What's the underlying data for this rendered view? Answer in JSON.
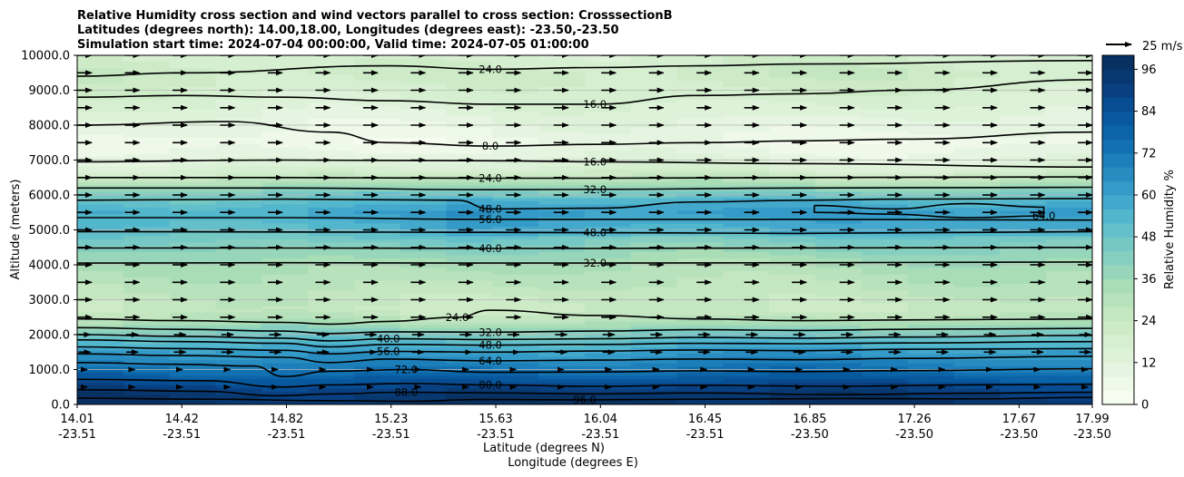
{
  "chart_data": {
    "type": "heatmap",
    "title_lines": [
      "Relative Humidity cross section and wind vectors parallel to cross section: CrosssectionB",
      "Latitudes (degrees north): 14.00,18.00, Longitudes (degrees east): -23.50,-23.50",
      "Simulation start time: 2024-07-04 00:00:00, Valid time: 2024-07-05 01:00:00"
    ],
    "ylabel": "Altitude (meters)",
    "xlabel_lines": [
      "Latitude (degrees N)",
      "Longitude (degrees E)"
    ],
    "ylim": [
      0,
      10000
    ],
    "y_ticks": [
      "0.0",
      "1000.0",
      "2000.0",
      "3000.0",
      "4000.0",
      "5000.0",
      "6000.0",
      "7000.0",
      "8000.0",
      "9000.0",
      "10000.0"
    ],
    "x_ticks": [
      {
        "lat": "14.01",
        "lon": "-23.51"
      },
      {
        "lat": "14.42",
        "lon": "-23.51"
      },
      {
        "lat": "14.82",
        "lon": "-23.51"
      },
      {
        "lat": "15.23",
        "lon": "-23.51"
      },
      {
        "lat": "15.63",
        "lon": "-23.51"
      },
      {
        "lat": "16.04",
        "lon": "-23.51"
      },
      {
        "lat": "16.45",
        "lon": "-23.51"
      },
      {
        "lat": "16.85",
        "lon": "-23.50"
      },
      {
        "lat": "17.26",
        "lon": "-23.50"
      },
      {
        "lat": "17.67",
        "lon": "-23.50"
      },
      {
        "lat": "17.99",
        "lon": "-23.50"
      }
    ],
    "colorbar": {
      "label": "Relative Humidity %",
      "min": 0,
      "max": 100,
      "ticks": [
        "0",
        "12",
        "24",
        "36",
        "48",
        "60",
        "72",
        "84",
        "96"
      ],
      "levels": [
        0,
        4,
        8,
        12,
        16,
        20,
        24,
        28,
        32,
        36,
        40,
        44,
        48,
        52,
        56,
        60,
        64,
        68,
        72,
        76,
        80,
        84,
        88,
        92,
        96,
        100
      ],
      "colors": [
        "#f7fcf0",
        "#eff9e9",
        "#e6f5e1",
        "#def2d9",
        "#d6efd0",
        "#cdebc7",
        "#c4e7c1",
        "#b7e2bb",
        "#a9ddb6",
        "#98d6bb",
        "#86cfc0",
        "#75c8c4",
        "#63bfc9",
        "#52b6cc",
        "#43a8cc",
        "#349ac7",
        "#288cc0",
        "#1d7fba",
        "#1371b1",
        "#0b64a8",
        "#08589e",
        "#084c92",
        "#084081",
        "#083870",
        "#083060"
      ]
    },
    "wind_reference": {
      "label": "25 m/s",
      "speed": 25
    },
    "field_profile": [
      {
        "alt": 0,
        "rh": 97
      },
      {
        "alt": 300,
        "rh": 94
      },
      {
        "alt": 600,
        "rh": 86
      },
      {
        "alt": 900,
        "rh": 76
      },
      {
        "alt": 1200,
        "rh": 68
      },
      {
        "alt": 1500,
        "rh": 61
      },
      {
        "alt": 1800,
        "rh": 52
      },
      {
        "alt": 2100,
        "rh": 42
      },
      {
        "alt": 2400,
        "rh": 30
      },
      {
        "alt": 2700,
        "rh": 24
      },
      {
        "alt": 3000,
        "rh": 25
      },
      {
        "alt": 3500,
        "rh": 29
      },
      {
        "alt": 4000,
        "rh": 33
      },
      {
        "alt": 4500,
        "rh": 41
      },
      {
        "alt": 5000,
        "rh": 52
      },
      {
        "alt": 5500,
        "rh": 57
      },
      {
        "alt": 6000,
        "rh": 47
      },
      {
        "alt": 6300,
        "rh": 34
      },
      {
        "alt": 6700,
        "rh": 18
      },
      {
        "alt": 7000,
        "rh": 12
      },
      {
        "alt": 7500,
        "rh": 6
      },
      {
        "alt": 8000,
        "rh": 10
      },
      {
        "alt": 8500,
        "rh": 15
      },
      {
        "alt": 9000,
        "rh": 19
      },
      {
        "alt": 9500,
        "rh": 22
      },
      {
        "alt": 10000,
        "rh": 18
      }
    ],
    "contours": [
      {
        "level": "96.0",
        "points": [
          [
            14.01,
            180
          ],
          [
            14.5,
            150
          ],
          [
            15.0,
            110
          ],
          [
            15.3,
            90
          ],
          [
            15.6,
            140
          ],
          [
            16.0,
            130
          ],
          [
            16.5,
            150
          ],
          [
            17.0,
            170
          ],
          [
            17.5,
            160
          ],
          [
            17.99,
            200
          ]
        ]
      },
      {
        "level": "88.0",
        "points": [
          [
            14.01,
            420
          ],
          [
            14.5,
            380
          ],
          [
            14.8,
            250
          ],
          [
            15.0,
            300
          ],
          [
            15.3,
            350
          ],
          [
            15.63,
            330
          ],
          [
            16.04,
            300
          ],
          [
            16.45,
            330
          ],
          [
            17.0,
            280
          ],
          [
            17.5,
            320
          ],
          [
            17.99,
            350
          ]
        ]
      },
      {
        "level": "80.0",
        "points": [
          [
            14.01,
            720
          ],
          [
            14.5,
            680
          ],
          [
            14.82,
            500
          ],
          [
            15.0,
            560
          ],
          [
            15.3,
            600
          ],
          [
            15.63,
            560
          ],
          [
            16.04,
            520
          ],
          [
            16.45,
            550
          ],
          [
            17.0,
            520
          ],
          [
            17.5,
            560
          ],
          [
            17.99,
            580
          ]
        ]
      },
      {
        "level": "72.0",
        "points": [
          [
            14.01,
            1200
          ],
          [
            14.4,
            1150
          ],
          [
            14.7,
            1100
          ],
          [
            14.82,
            800
          ],
          [
            15.0,
            950
          ],
          [
            15.3,
            1000
          ],
          [
            15.63,
            920
          ],
          [
            16.04,
            930
          ],
          [
            16.45,
            960
          ],
          [
            16.85,
            940
          ],
          [
            17.26,
            970
          ],
          [
            17.99,
            1020
          ]
        ]
      },
      {
        "level": "64.0",
        "points": [
          [
            14.01,
            1450
          ],
          [
            14.42,
            1400
          ],
          [
            14.82,
            1350
          ],
          [
            15.0,
            1200
          ],
          [
            15.23,
            1300
          ],
          [
            15.63,
            1250
          ],
          [
            16.04,
            1270
          ],
          [
            16.45,
            1300
          ],
          [
            16.85,
            1280
          ],
          [
            17.26,
            1320
          ],
          [
            17.99,
            1380
          ]
        ]
      },
      {
        "level": "56.0",
        "points": [
          [
            14.01,
            1650
          ],
          [
            14.42,
            1600
          ],
          [
            14.82,
            1550
          ],
          [
            15.0,
            1450
          ],
          [
            15.23,
            1520
          ],
          [
            15.63,
            1500
          ],
          [
            16.04,
            1530
          ],
          [
            16.45,
            1560
          ],
          [
            16.85,
            1540
          ],
          [
            17.26,
            1580
          ],
          [
            17.99,
            1600
          ]
        ]
      },
      {
        "level": "48.0",
        "points": [
          [
            14.01,
            1850
          ],
          [
            14.42,
            1800
          ],
          [
            14.82,
            1750
          ],
          [
            15.0,
            1650
          ],
          [
            15.23,
            1720
          ],
          [
            15.63,
            1700
          ],
          [
            16.04,
            1720
          ],
          [
            16.45,
            1750
          ],
          [
            16.85,
            1740
          ],
          [
            17.26,
            1760
          ],
          [
            17.99,
            1800
          ]
        ]
      },
      {
        "level": "40.0",
        "points": [
          [
            14.01,
            2000
          ],
          [
            14.42,
            1950
          ],
          [
            14.82,
            1900
          ],
          [
            15.0,
            1820
          ],
          [
            15.23,
            1880
          ],
          [
            15.63,
            1860
          ],
          [
            16.04,
            1880
          ],
          [
            16.45,
            1920
          ],
          [
            16.85,
            1900
          ],
          [
            17.26,
            1930
          ],
          [
            17.99,
            1980
          ]
        ]
      },
      {
        "level": "32.0",
        "points": [
          [
            14.01,
            2200
          ],
          [
            14.42,
            2150
          ],
          [
            14.82,
            2100
          ],
          [
            15.0,
            2030
          ],
          [
            15.23,
            2080
          ],
          [
            15.63,
            2070
          ],
          [
            16.04,
            2100
          ],
          [
            16.45,
            2140
          ],
          [
            16.85,
            2120
          ],
          [
            17.26,
            2150
          ],
          [
            17.99,
            2180
          ]
        ]
      },
      {
        "level": "24.0",
        "points": [
          [
            14.01,
            2450
          ],
          [
            14.42,
            2400
          ],
          [
            14.82,
            2350
          ],
          [
            15.0,
            2300
          ],
          [
            15.23,
            2380
          ],
          [
            15.5,
            2500
          ],
          [
            15.63,
            2700
          ],
          [
            16.04,
            2550
          ],
          [
            16.45,
            2450
          ],
          [
            16.85,
            2400
          ],
          [
            17.26,
            2420
          ],
          [
            17.99,
            2450
          ]
        ]
      },
      {
        "level": "32.0",
        "points": [
          [
            14.01,
            4050
          ],
          [
            14.82,
            4060
          ],
          [
            15.63,
            4050
          ],
          [
            16.04,
            4050
          ],
          [
            16.85,
            4060
          ],
          [
            17.99,
            4080
          ]
        ]
      },
      {
        "level": "40.0",
        "points": [
          [
            14.01,
            4480
          ],
          [
            14.82,
            4480
          ],
          [
            15.63,
            4470
          ],
          [
            16.04,
            4470
          ],
          [
            16.85,
            4480
          ],
          [
            17.99,
            4500
          ]
        ]
      },
      {
        "level": "48.0",
        "points": [
          [
            14.01,
            4950
          ],
          [
            14.82,
            4940
          ],
          [
            15.63,
            4930
          ],
          [
            16.04,
            4920
          ],
          [
            16.85,
            4900
          ],
          [
            17.99,
            4950
          ]
        ]
      },
      {
        "level": "56.0",
        "points": [
          [
            14.01,
            5350
          ],
          [
            14.82,
            5350
          ],
          [
            15.63,
            5300
          ],
          [
            16.04,
            5300
          ],
          [
            16.85,
            5300
          ],
          [
            17.99,
            5280
          ]
        ]
      },
      {
        "level": "64.0",
        "points": [
          [
            16.9,
            5700
          ],
          [
            17.2,
            5600
          ],
          [
            17.5,
            5750
          ],
          [
            17.8,
            5650
          ],
          [
            17.8,
            5400
          ],
          [
            17.5,
            5350
          ],
          [
            17.2,
            5450
          ],
          [
            16.9,
            5500
          ],
          [
            16.9,
            5700
          ]
        ]
      },
      {
        "level": "48.0",
        "points": [
          [
            14.01,
            5850
          ],
          [
            14.82,
            5880
          ],
          [
            15.5,
            5850
          ],
          [
            15.63,
            5600
          ],
          [
            16.04,
            5620
          ],
          [
            16.45,
            5800
          ],
          [
            16.85,
            5850
          ],
          [
            17.26,
            5880
          ],
          [
            17.99,
            5900
          ]
        ]
      },
      {
        "level": "32.0",
        "points": [
          [
            14.01,
            6200
          ],
          [
            14.82,
            6200
          ],
          [
            15.63,
            6150
          ],
          [
            16.04,
            6160
          ],
          [
            16.85,
            6200
          ],
          [
            17.99,
            6220
          ]
        ]
      },
      {
        "level": "24.0",
        "points": [
          [
            14.01,
            6500
          ],
          [
            14.82,
            6500
          ],
          [
            15.63,
            6480
          ],
          [
            16.04,
            6480
          ],
          [
            16.85,
            6500
          ],
          [
            17.99,
            6520
          ]
        ]
      },
      {
        "level": "16.0",
        "points": [
          [
            14.01,
            6950
          ],
          [
            14.82,
            7000
          ],
          [
            15.63,
            6980
          ],
          [
            16.04,
            6950
          ],
          [
            16.85,
            6900
          ],
          [
            17.99,
            6800
          ]
        ]
      },
      {
        "level": "8.0",
        "points": [
          [
            14.01,
            8000
          ],
          [
            14.6,
            8100
          ],
          [
            15.0,
            7800
          ],
          [
            15.23,
            7500
          ],
          [
            15.63,
            7400
          ],
          [
            16.04,
            7450
          ],
          [
            16.45,
            7500
          ],
          [
            16.85,
            7550
          ],
          [
            17.26,
            7600
          ],
          [
            17.99,
            7800
          ]
        ]
      },
      {
        "level": "16.0",
        "points": [
          [
            14.01,
            8800
          ],
          [
            14.42,
            8850
          ],
          [
            14.82,
            8800
          ],
          [
            15.23,
            8700
          ],
          [
            15.63,
            8600
          ],
          [
            16.04,
            8600
          ],
          [
            16.45,
            8850
          ],
          [
            16.85,
            8900
          ],
          [
            17.26,
            9000
          ],
          [
            17.99,
            9300
          ]
        ]
      },
      {
        "level": "24.0",
        "points": [
          [
            14.01,
            9400
          ],
          [
            14.42,
            9500
          ],
          [
            15.23,
            9700
          ],
          [
            15.63,
            9600
          ],
          [
            16.04,
            9650
          ],
          [
            16.45,
            9700
          ],
          [
            16.85,
            9750
          ],
          [
            17.99,
            9850
          ]
        ]
      }
    ]
  }
}
